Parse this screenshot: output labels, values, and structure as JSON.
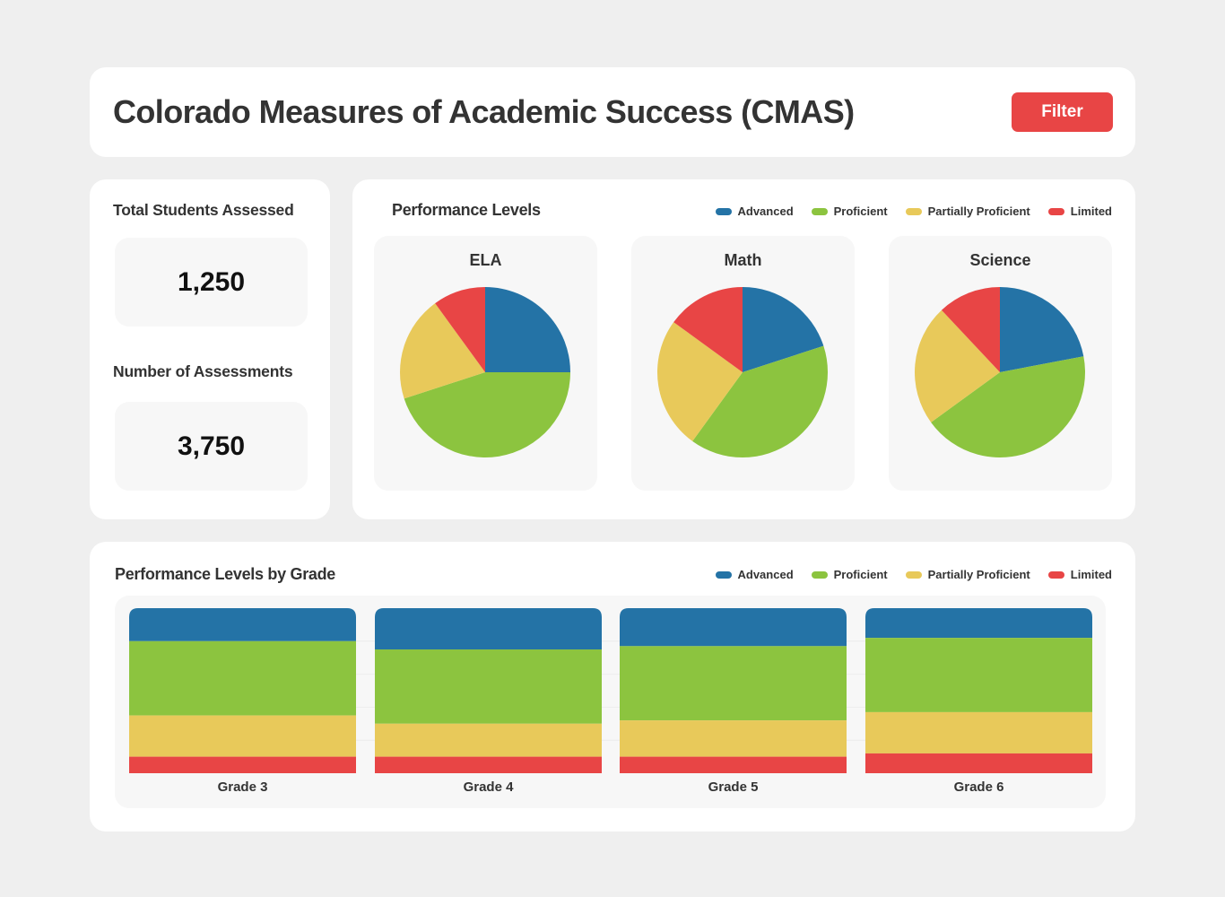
{
  "header": {
    "title": "Colorado Measures of Academic Success (CMAS)",
    "filter_label": "Filter"
  },
  "stats": {
    "total_students_label": "Total Students Assessed",
    "total_students_value": "1,250",
    "assessments_label": "Number of Assessments",
    "assessments_value": "3,750"
  },
  "colors": {
    "advanced": "#2473a6",
    "proficient": "#8cc43f",
    "partially": "#e8c95a",
    "limited": "#e84545"
  },
  "legend": {
    "advanced": "Advanced",
    "proficient": "Proficient",
    "partially": "Partially Proficient",
    "limited": "Limited"
  },
  "chart_data": [
    {
      "type": "pie",
      "title": "Performance Levels",
      "legend": [
        "Advanced",
        "Proficient",
        "Partially Proficient",
        "Limited"
      ],
      "subjects": [
        {
          "name": "ELA",
          "values": [
            25,
            45,
            20,
            10
          ]
        },
        {
          "name": "Math",
          "values": [
            20,
            40,
            25,
            15
          ]
        },
        {
          "name": "Science",
          "values": [
            22,
            43,
            23,
            12
          ]
        }
      ]
    },
    {
      "type": "bar",
      "stacked": true,
      "title": "Performance Levels by Grade",
      "categories": [
        "Grade 3",
        "Grade 4",
        "Grade 5",
        "Grade 6"
      ],
      "series": [
        {
          "name": "Advanced",
          "values": [
            20,
            25,
            23,
            18
          ]
        },
        {
          "name": "Proficient",
          "values": [
            45,
            45,
            45,
            45
          ]
        },
        {
          "name": "Partially Proficient",
          "values": [
            25,
            20,
            22,
            25
          ]
        },
        {
          "name": "Limited",
          "values": [
            10,
            10,
            10,
            12
          ]
        }
      ],
      "ylim": [
        0,
        100
      ]
    }
  ]
}
